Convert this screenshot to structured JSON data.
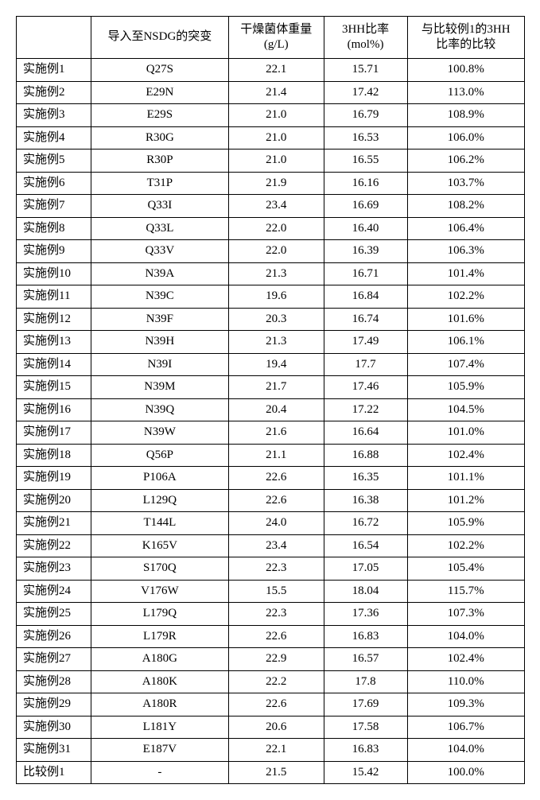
{
  "table": {
    "columns": [
      "",
      "导入至NSDG的突变",
      "干燥菌体重量\n(g/L)",
      "3HH比率\n(mol%)",
      "与比较例1的3HH\n比率的比较"
    ],
    "rows": [
      {
        "label": "实施例1",
        "mutation": "Q27S",
        "weight": "22.1",
        "ratio": "15.71",
        "comp": "100.8%"
      },
      {
        "label": "实施例2",
        "mutation": "E29N",
        "weight": "21.4",
        "ratio": "17.42",
        "comp": "113.0%"
      },
      {
        "label": "实施例3",
        "mutation": "E29S",
        "weight": "21.0",
        "ratio": "16.79",
        "comp": "108.9%"
      },
      {
        "label": "实施例4",
        "mutation": "R30G",
        "weight": "21.0",
        "ratio": "16.53",
        "comp": "106.0%"
      },
      {
        "label": "实施例5",
        "mutation": "R30P",
        "weight": "21.0",
        "ratio": "16.55",
        "comp": "106.2%"
      },
      {
        "label": "实施例6",
        "mutation": "T31P",
        "weight": "21.9",
        "ratio": "16.16",
        "comp": "103.7%"
      },
      {
        "label": "实施例7",
        "mutation": "Q33I",
        "weight": "23.4",
        "ratio": "16.69",
        "comp": "108.2%"
      },
      {
        "label": "实施例8",
        "mutation": "Q33L",
        "weight": "22.0",
        "ratio": "16.40",
        "comp": "106.4%"
      },
      {
        "label": "实施例9",
        "mutation": "Q33V",
        "weight": "22.0",
        "ratio": "16.39",
        "comp": "106.3%"
      },
      {
        "label": "实施例10",
        "mutation": "N39A",
        "weight": "21.3",
        "ratio": "16.71",
        "comp": "101.4%"
      },
      {
        "label": "实施例11",
        "mutation": "N39C",
        "weight": "19.6",
        "ratio": "16.84",
        "comp": "102.2%"
      },
      {
        "label": "实施例12",
        "mutation": "N39F",
        "weight": "20.3",
        "ratio": "16.74",
        "comp": "101.6%"
      },
      {
        "label": "实施例13",
        "mutation": "N39H",
        "weight": "21.3",
        "ratio": "17.49",
        "comp": "106.1%"
      },
      {
        "label": "实施例14",
        "mutation": "N39I",
        "weight": "19.4",
        "ratio": "17.7",
        "comp": "107.4%"
      },
      {
        "label": "实施例15",
        "mutation": "N39M",
        "weight": "21.7",
        "ratio": "17.46",
        "comp": "105.9%"
      },
      {
        "label": "实施例16",
        "mutation": "N39Q",
        "weight": "20.4",
        "ratio": "17.22",
        "comp": "104.5%"
      },
      {
        "label": "实施例17",
        "mutation": "N39W",
        "weight": "21.6",
        "ratio": "16.64",
        "comp": "101.0%"
      },
      {
        "label": "实施例18",
        "mutation": "Q56P",
        "weight": "21.1",
        "ratio": "16.88",
        "comp": "102.4%"
      },
      {
        "label": "实施例19",
        "mutation": "P106A",
        "weight": "22.6",
        "ratio": "16.35",
        "comp": "101.1%"
      },
      {
        "label": "实施例20",
        "mutation": "L129Q",
        "weight": "22.6",
        "ratio": "16.38",
        "comp": "101.2%"
      },
      {
        "label": "实施例21",
        "mutation": "T144L",
        "weight": "24.0",
        "ratio": "16.72",
        "comp": "105.9%"
      },
      {
        "label": "实施例22",
        "mutation": "K165V",
        "weight": "23.4",
        "ratio": "16.54",
        "comp": "102.2%"
      },
      {
        "label": "实施例23",
        "mutation": "S170Q",
        "weight": "22.3",
        "ratio": "17.05",
        "comp": "105.4%"
      },
      {
        "label": "实施例24",
        "mutation": "V176W",
        "weight": "15.5",
        "ratio": "18.04",
        "comp": "115.7%"
      },
      {
        "label": "实施例25",
        "mutation": "L179Q",
        "weight": "22.3",
        "ratio": "17.36",
        "comp": "107.3%"
      },
      {
        "label": "实施例26",
        "mutation": "L179R",
        "weight": "22.6",
        "ratio": "16.83",
        "comp": "104.0%"
      },
      {
        "label": "实施例27",
        "mutation": "A180G",
        "weight": "22.9",
        "ratio": "16.57",
        "comp": "102.4%"
      },
      {
        "label": "实施例28",
        "mutation": "A180K",
        "weight": "22.2",
        "ratio": "17.8",
        "comp": "110.0%"
      },
      {
        "label": "实施例29",
        "mutation": "A180R",
        "weight": "22.6",
        "ratio": "17.69",
        "comp": "109.3%"
      },
      {
        "label": "实施例30",
        "mutation": "L181Y",
        "weight": "20.6",
        "ratio": "17.58",
        "comp": "106.7%"
      },
      {
        "label": "实施例31",
        "mutation": "E187V",
        "weight": "22.1",
        "ratio": "16.83",
        "comp": "104.0%"
      },
      {
        "label": "比较例1",
        "mutation": "-",
        "weight": "21.5",
        "ratio": "15.42",
        "comp": "100.0%"
      }
    ]
  }
}
